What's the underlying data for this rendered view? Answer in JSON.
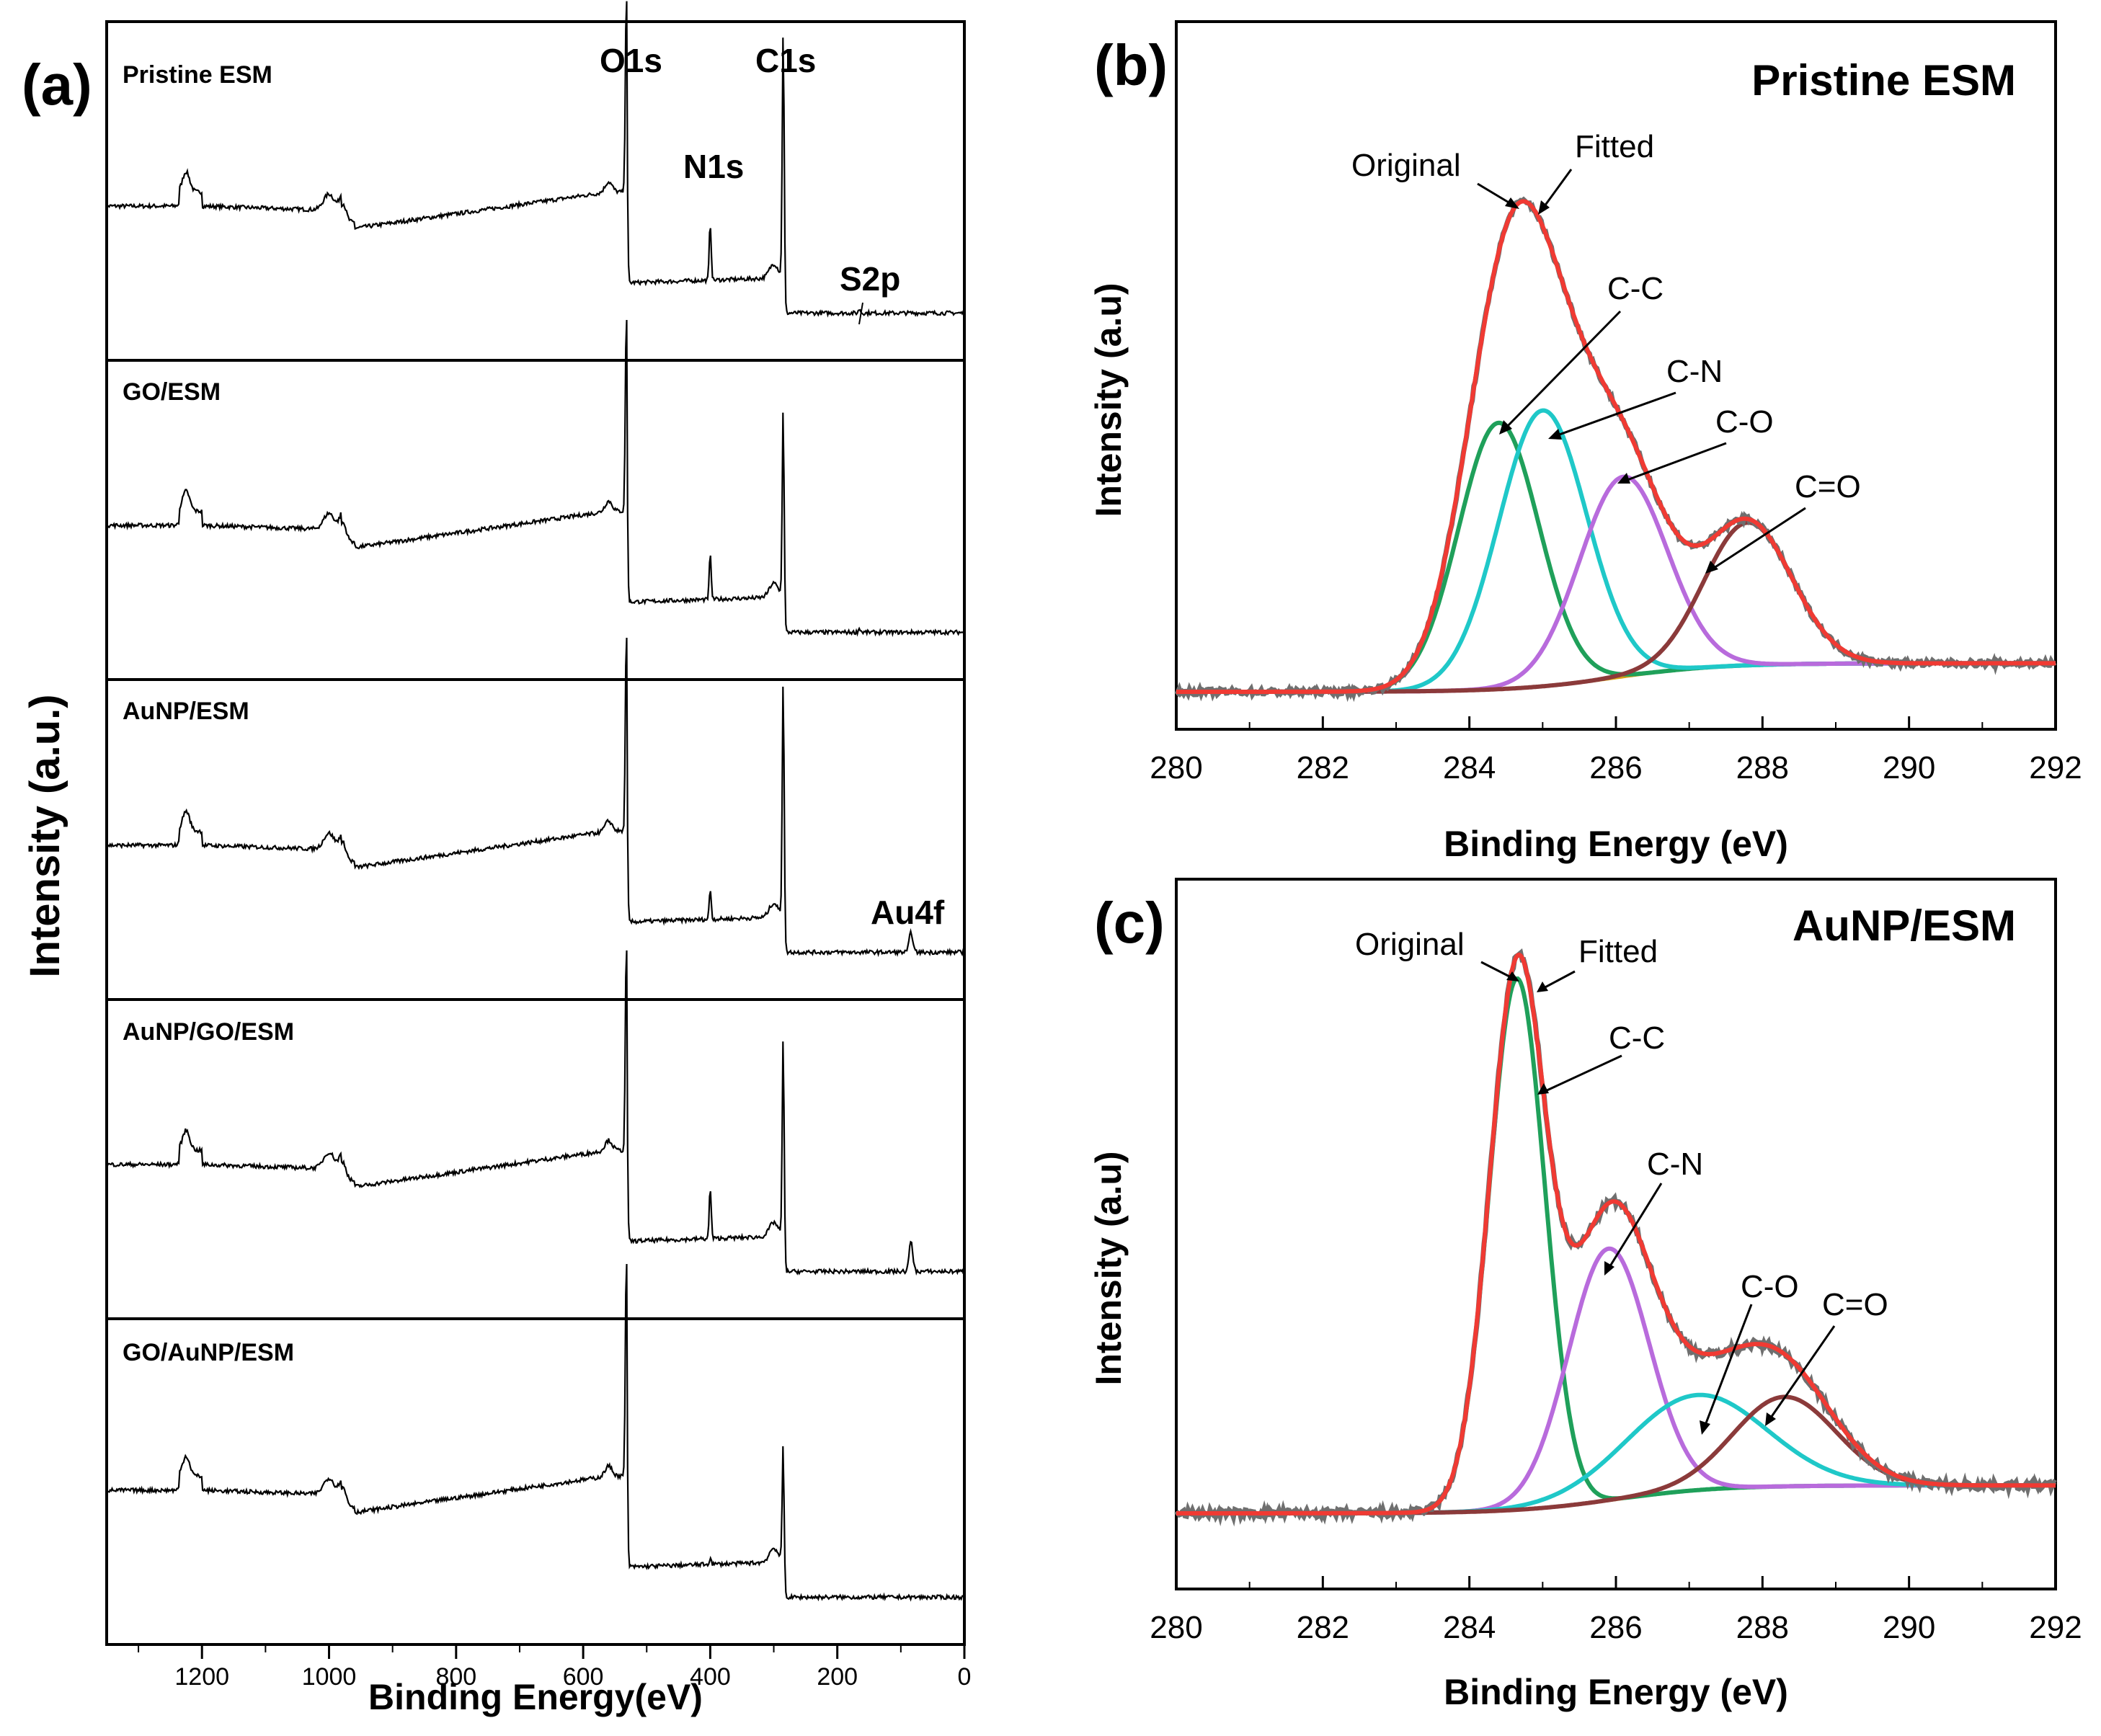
{
  "panels": {
    "a": {
      "label": "(a)"
    },
    "b": {
      "label": "(b)"
    },
    "c": {
      "label": "(c)"
    }
  },
  "chart_data": [
    {
      "id": "a",
      "type": "line",
      "title": "",
      "xlabel": "Binding Energy(eV)",
      "ylabel": "Intensity (a.u.)",
      "xlim": [
        1350,
        0
      ],
      "xticks": [
        "1200",
        "1000",
        "800",
        "600",
        "400",
        "200",
        "0"
      ],
      "xtick_values": [
        1200,
        1000,
        800,
        600,
        400,
        200,
        0
      ],
      "stacked_samples": [
        "Pristine ESM",
        "GO/ESM",
        "AuNP/ESM",
        "AuNP/GO/ESM",
        "GO/AuNP/ESM"
      ],
      "peak_labels": [
        {
          "text": "O1s",
          "x": 532
        },
        {
          "text": "N1s",
          "x": 400
        },
        {
          "text": "C1s",
          "x": 285
        },
        {
          "text": "S2p",
          "x": 165
        },
        {
          "text": "Au4f",
          "x": 84
        }
      ],
      "spectra": [
        {
          "name": "Pristine ESM",
          "peaks": [
            [
              532,
              1.0
            ],
            [
              400,
              0.28
            ],
            [
              285,
              1.25
            ],
            [
              165,
              0.02
            ]
          ]
        },
        {
          "name": "GO/ESM",
          "peaks": [
            [
              532,
              1.0
            ],
            [
              400,
              0.22
            ],
            [
              285,
              0.95
            ],
            [
              165,
              0.02
            ]
          ]
        },
        {
          "name": "AuNP/ESM",
          "peaks": [
            [
              532,
              1.0
            ],
            [
              400,
              0.15
            ],
            [
              285,
              1.2
            ],
            [
              84,
              0.1
            ]
          ]
        },
        {
          "name": "AuNP/GO/ESM",
          "peaks": [
            [
              532,
              1.05
            ],
            [
              400,
              0.25
            ],
            [
              285,
              1.0
            ],
            [
              84,
              0.15
            ]
          ]
        },
        {
          "name": "GO/AuNP/ESM",
          "peaks": [
            [
              532,
              1.1
            ],
            [
              400,
              0.03
            ],
            [
              285,
              0.6
            ]
          ]
        }
      ]
    },
    {
      "id": "b",
      "type": "line",
      "title": "Pristine ESM",
      "xlabel": "Binding Energy (eV)",
      "ylabel": "Intensity (a.u)",
      "xlim": [
        280,
        292
      ],
      "xticks": [
        "280",
        "282",
        "284",
        "286",
        "288",
        "290",
        "292"
      ],
      "xtick_values": [
        280,
        282,
        284,
        286,
        288,
        290,
        292
      ],
      "legend": [
        {
          "text": "Original",
          "color": "#6f6f6f"
        },
        {
          "text": "Fitted",
          "color": "#f03a33"
        }
      ],
      "components": [
        {
          "name": "C-C",
          "center": 284.4,
          "height": 0.56,
          "sigma": 0.55,
          "color": "#1fa05a"
        },
        {
          "name": "C-N",
          "center": 285.0,
          "height": 0.58,
          "sigma": 0.6,
          "color": "#1fc8c8"
        },
        {
          "name": "C-O",
          "center": 286.1,
          "height": 0.42,
          "sigma": 0.6,
          "color": "#b86bdc"
        },
        {
          "name": "C=O",
          "center": 287.8,
          "height": 0.3,
          "sigma": 0.6,
          "color": "#8b3a3a"
        }
      ],
      "baseline": {
        "left": 0.0,
        "right": 0.06,
        "color": "#d6a015"
      }
    },
    {
      "id": "c",
      "type": "line",
      "title": "AuNP/ESM",
      "xlabel": "Binding Energy (eV)",
      "ylabel": "Intensity (a.u)",
      "xlim": [
        280,
        292
      ],
      "xticks": [
        "280",
        "282",
        "284",
        "286",
        "288",
        "290",
        "292"
      ],
      "xtick_values": [
        280,
        282,
        284,
        286,
        288,
        290,
        292
      ],
      "legend": [
        {
          "text": "Original",
          "color": "#6f6f6f"
        },
        {
          "text": "Fitted",
          "color": "#f03a33"
        }
      ],
      "components": [
        {
          "name": "C-C",
          "center": 284.65,
          "height": 0.95,
          "sigma": 0.38,
          "color": "#1fa05a"
        },
        {
          "name": "C-N",
          "center": 285.9,
          "height": 0.45,
          "sigma": 0.55,
          "color": "#b86bdc"
        },
        {
          "name": "C-O",
          "center": 287.1,
          "height": 0.17,
          "sigma": 0.95,
          "color": "#1fc8c8"
        },
        {
          "name": "C=O",
          "center": 288.3,
          "height": 0.16,
          "sigma": 0.7,
          "color": "#8b3a3a"
        }
      ],
      "baseline": {
        "left": 0.0,
        "right": 0.05,
        "color": "#d6a015"
      }
    }
  ]
}
